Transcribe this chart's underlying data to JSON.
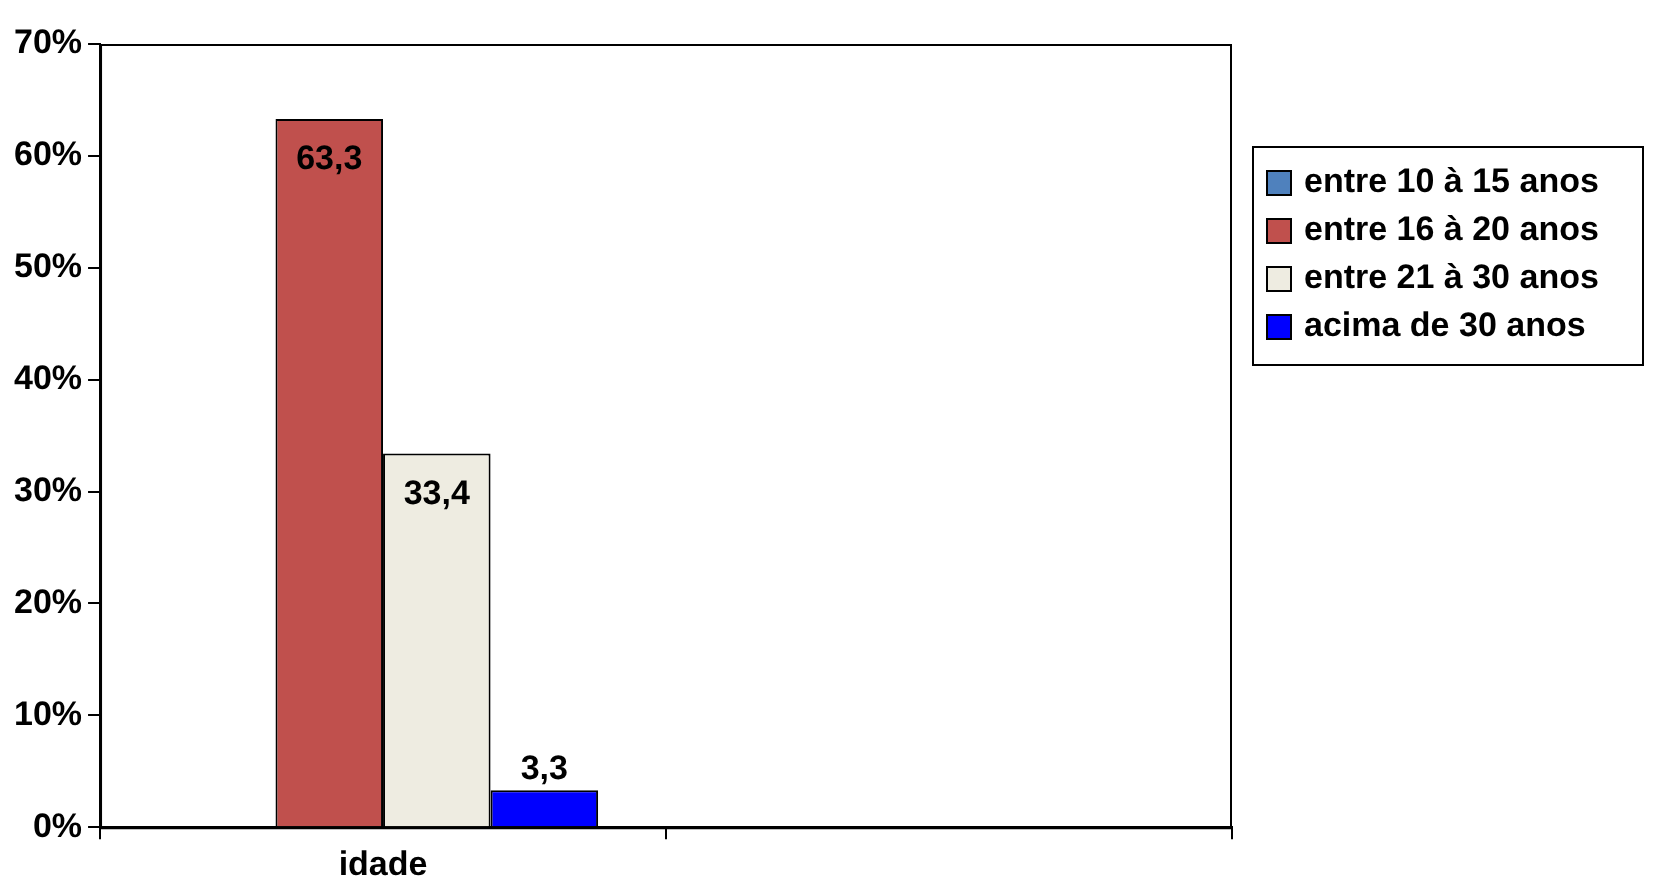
{
  "chart_data": {
    "type": "bar",
    "categories": [
      "idade",
      null
    ],
    "series": [
      {
        "name": "entre 10 à 15 anos",
        "color": "#4f81bd",
        "values": [
          null,
          null
        ]
      },
      {
        "name": "entre 16 à 20 anos",
        "color": "#c0504d",
        "values": [
          63.3,
          null
        ],
        "value_labels": [
          "63,3",
          null
        ]
      },
      {
        "name": "entre 21 à 30 anos",
        "color": "#eeece1",
        "values": [
          33.4,
          null
        ],
        "value_labels": [
          "33,4",
          null
        ]
      },
      {
        "name": "acima de 30 anos",
        "color": "#0000ff",
        "values": [
          3.3,
          null
        ],
        "value_labels": [
          "3,3",
          null
        ]
      }
    ],
    "ylim": [
      0,
      70
    ],
    "yticks": [
      {
        "value": 0,
        "label": "0%"
      },
      {
        "value": 10,
        "label": "10%"
      },
      {
        "value": 20,
        "label": "20%"
      },
      {
        "value": 30,
        "label": "30%"
      },
      {
        "value": 40,
        "label": "40%"
      },
      {
        "value": 50,
        "label": "50%"
      },
      {
        "value": 60,
        "label": "60%"
      },
      {
        "value": 70,
        "label": "70%"
      }
    ],
    "grid": false,
    "legend": "right"
  }
}
